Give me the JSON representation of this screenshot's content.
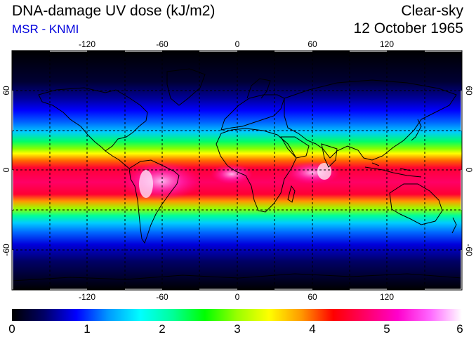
{
  "header": {
    "title": "DNA-damage UV dose (kJ/m2)",
    "subtitle": "MSR - KNMI",
    "condition": "Clear-sky",
    "date": "12 October 1965"
  },
  "map": {
    "lon_ticks": [
      "-120",
      "-60",
      "0",
      "60",
      "120"
    ],
    "lat_ticks": [
      "60",
      "0",
      "-60"
    ],
    "graticule": "dashed",
    "colorbar": {
      "min": 0,
      "max": 6,
      "labels": [
        "0",
        "1",
        "2",
        "3",
        "4",
        "5",
        "6"
      ],
      "colors": [
        "#000000",
        "#000066",
        "#0000ff",
        "#0099ff",
        "#00ffff",
        "#00ff99",
        "#00ff00",
        "#99ff00",
        "#ffff00",
        "#ff9900",
        "#ff0000",
        "#ff0066",
        "#ff00cc",
        "#ff66ff",
        "#ffffff"
      ]
    }
  }
}
